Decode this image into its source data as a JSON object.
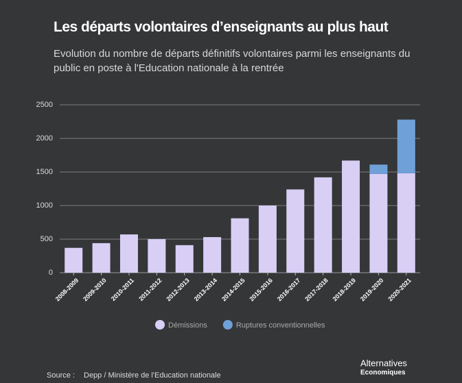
{
  "chart_data": {
    "type": "stacked-bar",
    "title": "Les départs volontaires d’enseignants au plus haut",
    "subtitle": [
      "Evolution du nombre de départs définitifs volontaires parmi les enseignants du",
      "public en poste à l'Education nationale à la rentrée"
    ],
    "categories": [
      "2008-2009",
      "2009-2010",
      "2010-2011",
      "2011-2012",
      "2012-2013",
      "2013-2014",
      "2014-2015",
      "2015-2016",
      "2016-2017",
      "2017-2018",
      "2018-2019",
      "2019-2020",
      "2020-2021"
    ],
    "series": [
      {
        "name": "Démissions",
        "color": "#d9cff5",
        "values": [
          370,
          440,
          570,
          500,
          410,
          530,
          810,
          1000,
          1240,
          1420,
          1670,
          1470,
          1480
        ]
      },
      {
        "name": "Ruptures conventionnelles",
        "color": "#6fa0d8",
        "values": [
          null,
          null,
          null,
          null,
          null,
          null,
          null,
          null,
          null,
          null,
          null,
          140,
          800
        ]
      }
    ],
    "ylim": [
      0,
      2500
    ],
    "yticks": [
      0,
      500,
      1000,
      1500,
      2000,
      2500
    ],
    "grid": true,
    "source_label": "Source :",
    "source": "Depp / Ministère de l'Education nationale",
    "logo": [
      "Alternatives",
      "Economiques"
    ]
  }
}
